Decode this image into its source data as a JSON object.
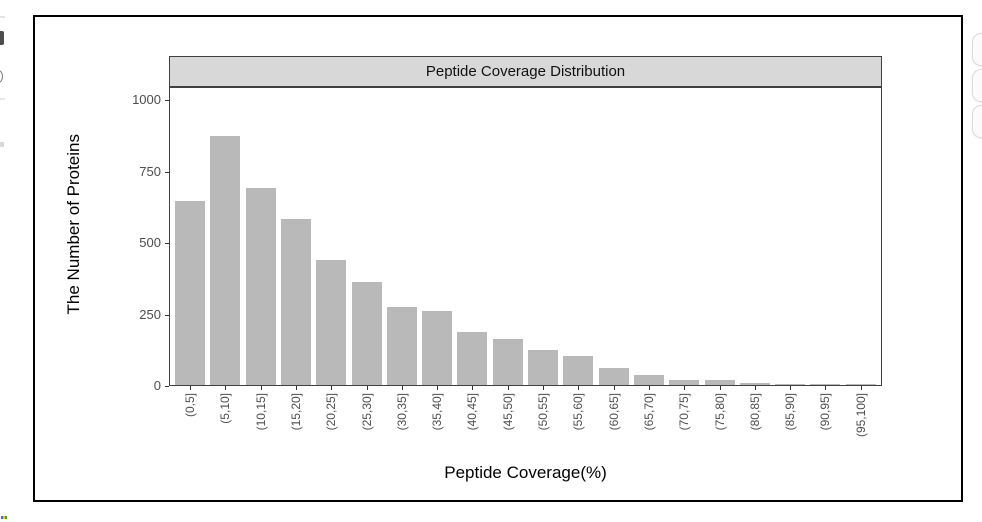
{
  "chart_data": {
    "type": "bar",
    "title": "Peptide Coverage Distribution",
    "xlabel": "Peptide Coverage(%)",
    "ylabel": "The Number of Proteins",
    "categories": [
      "(0,5]",
      "(5,10]",
      "(10,15]",
      "(15,20]",
      "(20,25]",
      "(25,30]",
      "(30,35]",
      "(35,40]",
      "(40,45]",
      "(45,50]",
      "(50,55]",
      "(55,60]",
      "(60,65]",
      "(65,70]",
      "(70,75]",
      "(75,80]",
      "(80,85]",
      "(85,90]",
      "(90,95]",
      "(95,100]"
    ],
    "values": [
      645,
      870,
      690,
      580,
      438,
      360,
      272,
      258,
      184,
      161,
      122,
      100,
      58,
      35,
      18,
      16,
      6,
      3,
      2,
      2
    ],
    "yticks": [
      0,
      250,
      500,
      750,
      1000
    ],
    "ylim": [
      0,
      1045
    ],
    "grid": "off",
    "legend": "none",
    "bar_color": "#b9b9b9",
    "strip_bg": "#d8d8d8",
    "border_color": "#404040",
    "tick_label_color": "#4d4d4d"
  },
  "decorations": {
    "side_button_count": 3,
    "corner_mark_colors": [
      "#4472c4",
      "#fbbc05",
      "#34a853"
    ]
  }
}
